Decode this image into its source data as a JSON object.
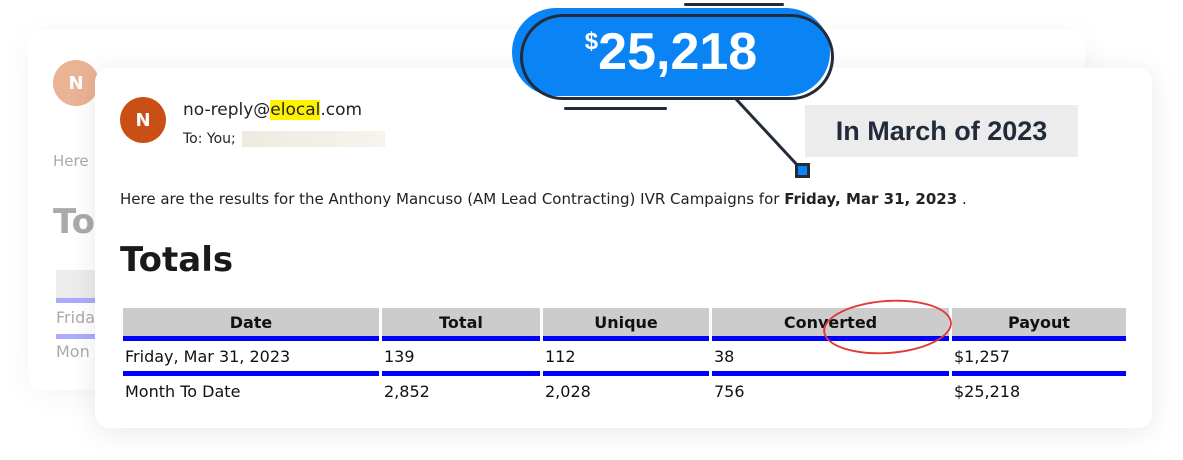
{
  "email": {
    "avatar_letter": "N",
    "from_prefix": "no-reply@",
    "from_highlight": "elocal",
    "from_suffix": ".com",
    "to_label": "To:  You;",
    "intro_text": "Here are the results for the Anthony Mancuso (AM Lead Contracting) IVR Campaigns for ",
    "intro_date": "Friday, Mar 31, 2023",
    "intro_end": " .",
    "section_title": "Totals",
    "back_intro": "Here",
    "back_title": "To",
    "back_row1": "Frida",
    "back_row2": "Mon"
  },
  "table": {
    "headers": [
      "Date",
      "Total",
      "Unique",
      "Converted",
      "Payout"
    ],
    "rows": [
      [
        "Friday, Mar 31, 2023",
        "139",
        "112",
        "38",
        "$1,257"
      ],
      [
        "Month To Date",
        "2,852",
        "2,028",
        "756",
        "$25,218"
      ]
    ]
  },
  "callout": {
    "currency": "$",
    "amount": "25,218",
    "caption": "In March of 2023"
  },
  "colors": {
    "accent": "#0a84f5",
    "table_rule": "#0000ff",
    "highlight": "#fff200",
    "avatar": "#c94f14",
    "circle": "#e23a3a"
  }
}
